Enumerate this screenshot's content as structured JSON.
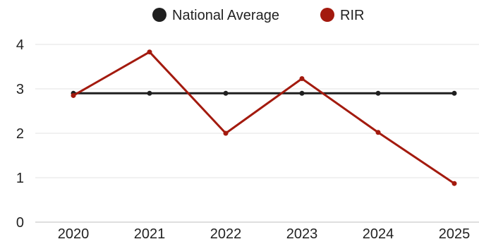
{
  "chart_data": {
    "type": "line",
    "x": [
      "2020",
      "2021",
      "2022",
      "2023",
      "2024",
      "2025"
    ],
    "ylim": [
      0,
      4
    ],
    "yticks": [
      "0",
      "1",
      "2",
      "3",
      "4"
    ],
    "grid": true,
    "legend_position": "top",
    "series": [
      {
        "name": "National Average",
        "color": "#1f1f1f",
        "values": [
          2.9,
          2.9,
          2.9,
          2.9,
          2.9,
          2.9
        ]
      },
      {
        "name": "RIR",
        "color": "#a31a0e",
        "values": [
          2.85,
          3.83,
          2.0,
          3.23,
          2.02,
          0.87
        ]
      }
    ]
  }
}
